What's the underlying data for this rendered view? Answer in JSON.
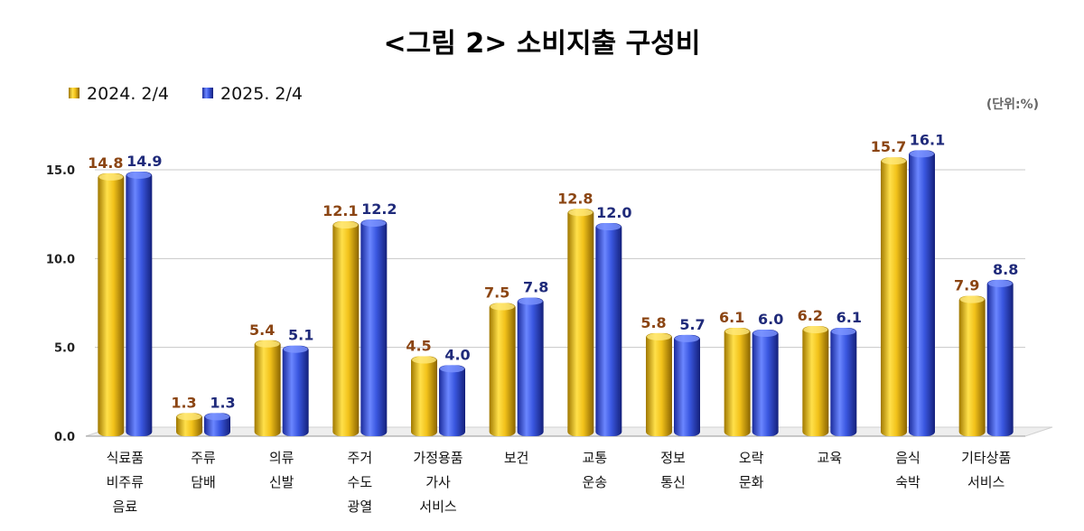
{
  "chart_data": {
    "type": "bar",
    "title": "<그림 2> 소비지출 구성비",
    "unit": "(단위:%)",
    "ylim": [
      0,
      15
    ],
    "yticks": [
      "0.0",
      "5.0",
      "10.0",
      "15.0"
    ],
    "grid": true,
    "legend_position": "top-left",
    "categories": [
      [
        "식료품",
        "비주류",
        "음료"
      ],
      [
        "주류",
        "담배"
      ],
      [
        "의류",
        "신발"
      ],
      [
        "주거",
        "수도",
        "광열"
      ],
      [
        "가정용품",
        "가사",
        "서비스"
      ],
      [
        "보건"
      ],
      [
        "교통",
        "운송"
      ],
      [
        "정보",
        "통신"
      ],
      [
        "오락",
        "문화"
      ],
      [
        "교육"
      ],
      [
        "음식",
        "숙박"
      ],
      [
        "기타상품",
        "서비스"
      ]
    ],
    "series": [
      {
        "name": "2024. 2/4",
        "color": "#f2c21a",
        "label_color": "#8b4513",
        "values": [
          14.8,
          1.3,
          5.4,
          12.1,
          4.5,
          7.5,
          12.8,
          5.8,
          6.1,
          6.2,
          15.7,
          7.9
        ]
      },
      {
        "name": "2025. 2/4",
        "color": "#3a57e0",
        "label_color": "#1f2a7a",
        "values": [
          14.9,
          1.3,
          5.1,
          12.2,
          4.0,
          7.8,
          12.0,
          5.7,
          6.0,
          6.1,
          16.1,
          8.8
        ]
      }
    ]
  }
}
